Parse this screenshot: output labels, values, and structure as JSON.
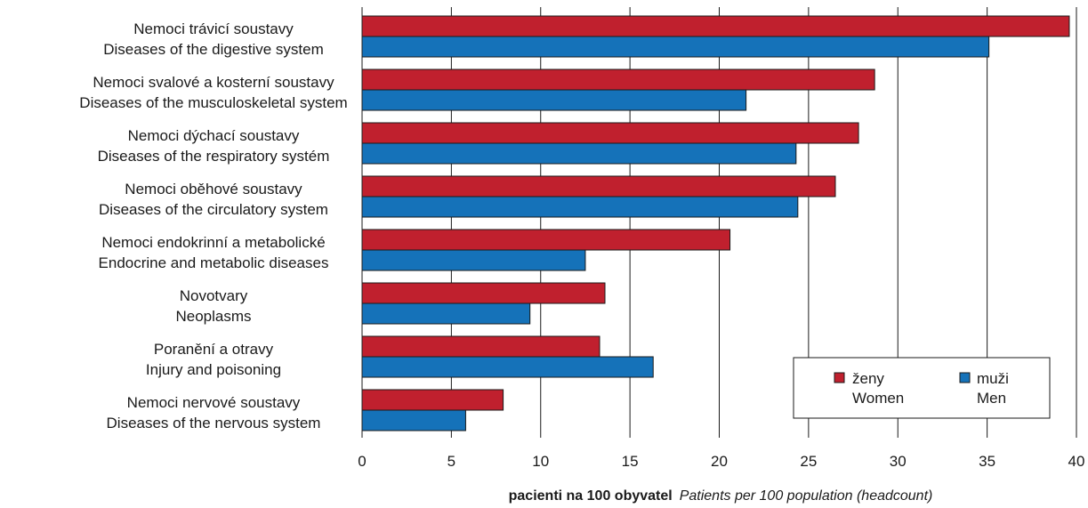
{
  "chart_data": {
    "type": "bar",
    "orientation": "horizontal",
    "categories": [
      {
        "cz": "Nemoci trávicí soustavy",
        "en": "Diseases of the digestive system"
      },
      {
        "cz": "Nemoci svalové a kosterní soustavy",
        "en": "Diseases of the musculoskeletal system"
      },
      {
        "cz": "Nemoci dýchací soustavy",
        "en": "Diseases of the respiratory systém"
      },
      {
        "cz": "Nemoci oběhové soustavy",
        "en": "Diseases of the circulatory system"
      },
      {
        "cz": "Nemoci endokrinní a metabolické",
        "en": "Endocrine and metabolic diseases"
      },
      {
        "cz": "Novotvary",
        "en": "Neoplasms"
      },
      {
        "cz": "Poranění a otravy",
        "en": "Injury and poisoning"
      },
      {
        "cz": "Nemoci nervové soustavy",
        "en": "Diseases of the nervous system"
      }
    ],
    "series": [
      {
        "name_cz": "ženy",
        "name_en": "Women",
        "color": "#c0202e",
        "values": [
          39.6,
          28.7,
          27.8,
          26.5,
          20.6,
          13.6,
          13.3,
          7.9
        ]
      },
      {
        "name_cz": "muži",
        "name_en": "Men",
        "color": "#1572b9",
        "values": [
          35.1,
          21.5,
          24.3,
          24.4,
          12.5,
          9.4,
          16.3,
          5.8
        ]
      }
    ],
    "xlim": [
      0,
      40
    ],
    "xticks": [
      0,
      5,
      10,
      15,
      20,
      25,
      30,
      35,
      40
    ],
    "xlabel_cz": "pacienti na 100 obyvatel",
    "xlabel_en": "Patients per 100 population (headcount)",
    "grid": "vertical",
    "legend_position": "bottom-right"
  }
}
